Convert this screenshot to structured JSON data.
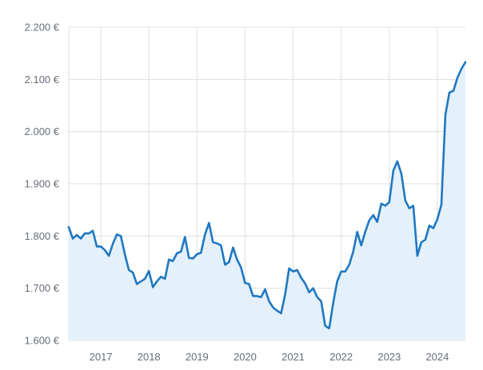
{
  "chart_data": {
    "type": "area",
    "title": "",
    "xlabel": "",
    "ylabel": "",
    "grid": true,
    "legend": "none",
    "ylim": [
      1600,
      2200
    ],
    "xlim": [
      "2016-05",
      "2024-08"
    ],
    "y_ticks": [
      {
        "value": 2200,
        "label": "2.200 €"
      },
      {
        "value": 2100,
        "label": "2.100 €"
      },
      {
        "value": 2000,
        "label": "2.000 €"
      },
      {
        "value": 1900,
        "label": "1.900 €"
      },
      {
        "value": 1800,
        "label": "1.800 €"
      },
      {
        "value": 1700,
        "label": "1.700 €"
      },
      {
        "value": 1600,
        "label": "1.600 €"
      }
    ],
    "x_ticks": [
      {
        "value": "2017-01",
        "label": "2017"
      },
      {
        "value": "2018-01",
        "label": "2018"
      },
      {
        "value": "2019-01",
        "label": "2019"
      },
      {
        "value": "2020-01",
        "label": "2020"
      },
      {
        "value": "2021-01",
        "label": "2021"
      },
      {
        "value": "2022-01",
        "label": "2022"
      },
      {
        "value": "2023-01",
        "label": "2023"
      },
      {
        "value": "2024-01",
        "label": "2024"
      }
    ],
    "colors": {
      "line": "#1f78c1",
      "fill": "#e4f0fa",
      "grid": "#dcdfe3",
      "tick": "#666e78"
    },
    "series": [
      {
        "x": [
          "2016-05",
          "2016-06",
          "2016-07",
          "2016-08",
          "2016-09",
          "2016-10",
          "2016-11",
          "2016-12",
          "2017-01",
          "2017-02",
          "2017-03",
          "2017-04",
          "2017-05",
          "2017-06",
          "2017-07",
          "2017-08",
          "2017-09",
          "2017-10",
          "2017-11",
          "2017-12",
          "2018-01",
          "2018-02",
          "2018-03",
          "2018-04",
          "2018-05",
          "2018-06",
          "2018-07",
          "2018-08",
          "2018-09",
          "2018-10",
          "2018-11",
          "2018-12",
          "2019-01",
          "2019-02",
          "2019-03",
          "2019-04",
          "2019-05",
          "2019-06",
          "2019-07",
          "2019-08",
          "2019-09",
          "2019-10",
          "2019-11",
          "2019-12",
          "2020-01",
          "2020-02",
          "2020-03",
          "2020-04",
          "2020-05",
          "2020-06",
          "2020-07",
          "2020-08",
          "2020-09",
          "2020-10",
          "2020-11",
          "2020-12",
          "2021-01",
          "2021-02",
          "2021-03",
          "2021-04",
          "2021-05",
          "2021-06",
          "2021-07",
          "2021-08",
          "2021-09",
          "2021-10",
          "2021-11",
          "2021-12",
          "2022-01",
          "2022-02",
          "2022-03",
          "2022-04",
          "2022-05",
          "2022-06",
          "2022-07",
          "2022-08",
          "2022-09",
          "2022-10",
          "2022-11",
          "2022-12",
          "2023-01",
          "2023-02",
          "2023-03",
          "2023-04",
          "2023-05",
          "2023-06",
          "2023-07",
          "2023-08",
          "2023-09",
          "2023-10",
          "2023-11",
          "2023-12",
          "2024-01",
          "2024-02",
          "2024-03",
          "2024-04",
          "2024-05",
          "2024-06",
          "2024-07",
          "2024-08"
        ],
        "values": [
          1817,
          1795,
          1802,
          1795,
          1805,
          1805,
          1810,
          1780,
          1780,
          1773,
          1762,
          1785,
          1803,
          1800,
          1765,
          1735,
          1730,
          1708,
          1713,
          1718,
          1733,
          1702,
          1713,
          1722,
          1718,
          1755,
          1752,
          1767,
          1770,
          1798,
          1758,
          1757,
          1765,
          1768,
          1803,
          1825,
          1788,
          1786,
          1782,
          1745,
          1750,
          1778,
          1755,
          1740,
          1710,
          1708,
          1685,
          1685,
          1683,
          1698,
          1675,
          1663,
          1657,
          1652,
          1688,
          1738,
          1732,
          1735,
          1720,
          1709,
          1692,
          1700,
          1683,
          1675,
          1628,
          1623,
          1672,
          1713,
          1732,
          1732,
          1745,
          1770,
          1808,
          1782,
          1808,
          1830,
          1840,
          1827,
          1862,
          1858,
          1865,
          1925,
          1943,
          1920,
          1868,
          1853,
          1858,
          1762,
          1788,
          1793,
          1820,
          1815,
          1832,
          1860,
          2032,
          2075,
          2078,
          2103,
          2120,
          2133
        ]
      }
    ]
  }
}
